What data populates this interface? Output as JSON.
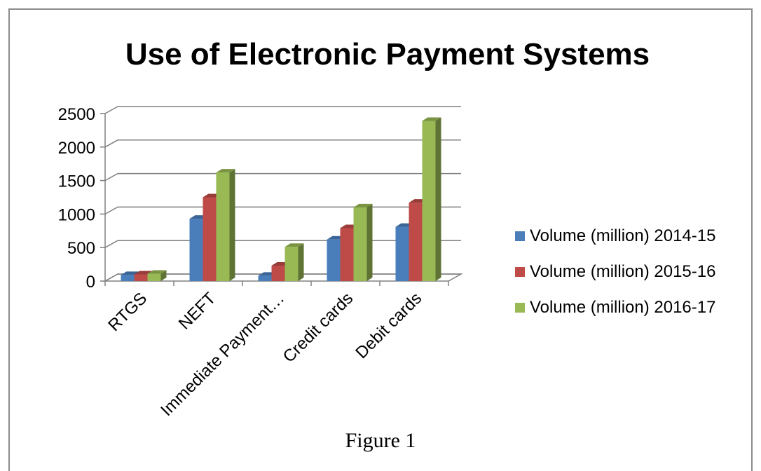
{
  "chart_data": {
    "type": "bar",
    "title": "Use of Electronic Payment Systems",
    "categories": [
      "RTGS",
      "NEFT",
      "Immediate Payment…",
      "Credit cards",
      "Debit cards"
    ],
    "series": [
      {
        "name": "Volume (million) 2014-15",
        "color": "#4a7ebb",
        "values": [
          90,
          930,
          80,
          620,
          810
        ]
      },
      {
        "name": "Volume (million) 2015-16",
        "color": "#be4b48",
        "values": [
          100,
          1250,
          230,
          790,
          1170
        ]
      },
      {
        "name": "Volume (million) 2016-17",
        "color": "#98b954",
        "values": [
          110,
          1620,
          510,
          1100,
          2390
        ]
      }
    ],
    "yticks": [
      0,
      500,
      1000,
      1500,
      2000,
      2500
    ],
    "ylim": [
      0,
      2500
    ],
    "xlabel": "",
    "ylabel": "",
    "grid": true,
    "legend": "right",
    "three_d": true
  },
  "caption": "Figure 1"
}
